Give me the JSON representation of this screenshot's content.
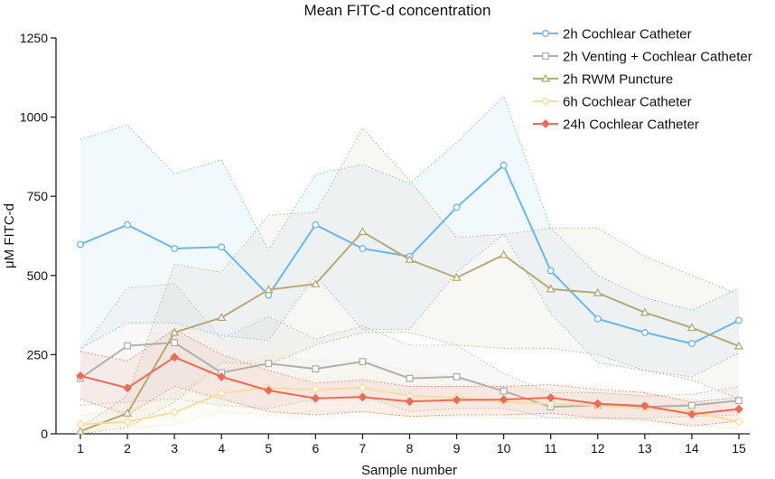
{
  "chart_data": {
    "type": "line",
    "title": "Mean FITC-d concentration",
    "xlabel": "Sample number",
    "ylabel": "μM FITC-d",
    "xlim": [
      1,
      15
    ],
    "ylim": [
      0,
      1250
    ],
    "x": [
      1,
      2,
      3,
      4,
      5,
      6,
      7,
      8,
      9,
      10,
      11,
      12,
      13,
      14,
      15
    ],
    "yticks": [
      0,
      250,
      500,
      750,
      1000,
      1250
    ],
    "legend_position": "top-right",
    "series": [
      {
        "name": "2h Cochlear Catheter",
        "color": "#6bb7ea",
        "marker": "circle",
        "values": [
          598,
          660,
          585,
          590,
          438,
          660,
          585,
          560,
          715,
          848,
          515,
          363,
          320,
          285,
          358
        ],
        "upper": [
          930,
          975,
          820,
          865,
          580,
          820,
          850,
          790,
          920,
          1065,
          650,
          500,
          430,
          390,
          460
        ],
        "lower": [
          270,
          350,
          350,
          310,
          295,
          500,
          330,
          330,
          510,
          630,
          380,
          225,
          200,
          180,
          255
        ]
      },
      {
        "name": "2h Venting + Cochlear Catheter",
        "color": "#b0b0b0",
        "marker": "square",
        "values": [
          175,
          278,
          288,
          193,
          222,
          205,
          228,
          175,
          180,
          135,
          85,
          90,
          85,
          90,
          105
        ],
        "upper": [
          260,
          460,
          475,
          300,
          370,
          300,
          340,
          280,
          280,
          190,
          130,
          130,
          120,
          125,
          150
        ],
        "lower": [
          90,
          100,
          110,
          90,
          80,
          110,
          120,
          70,
          80,
          80,
          50,
          50,
          50,
          55,
          60
        ]
      },
      {
        "name": "2h RWM Puncture",
        "color": "#b8a878",
        "marker": "triangle",
        "values": [
          8,
          65,
          320,
          367,
          455,
          473,
          638,
          550,
          493,
          565,
          457,
          445,
          383,
          335,
          277
        ],
        "upper": [
          20,
          120,
          535,
          510,
          690,
          700,
          965,
          800,
          620,
          630,
          650,
          650,
          560,
          500,
          440
        ],
        "lower": [
          0,
          20,
          100,
          225,
          220,
          280,
          320,
          320,
          280,
          270,
          270,
          250,
          200,
          170,
          110
        ]
      },
      {
        "name": "6h Cochlear Catheter",
        "color": "#f8dc9c",
        "marker": "diamond",
        "values": [
          30,
          38,
          68,
          128,
          145,
          140,
          145,
          120,
          115,
          100,
          95,
          90,
          80,
          70,
          38
        ],
        "upper": [
          60,
          70,
          130,
          200,
          250,
          230,
          230,
          200,
          180,
          150,
          140,
          130,
          120,
          110,
          70
        ],
        "lower": [
          10,
          15,
          30,
          70,
          60,
          70,
          70,
          55,
          55,
          50,
          50,
          45,
          40,
          30,
          15
        ]
      },
      {
        "name": "24h Cochlear Catheter",
        "color": "#f06a55",
        "marker": "filled-diamond",
        "values": [
          183,
          145,
          242,
          180,
          137,
          112,
          116,
          102,
          107,
          108,
          114,
          95,
          88,
          62,
          78
        ],
        "upper": [
          260,
          230,
          330,
          250,
          200,
          160,
          170,
          150,
          150,
          150,
          155,
          140,
          130,
          100,
          115
        ],
        "lower": [
          110,
          60,
          150,
          110,
          70,
          60,
          70,
          55,
          60,
          60,
          65,
          50,
          45,
          25,
          40
        ]
      }
    ]
  }
}
